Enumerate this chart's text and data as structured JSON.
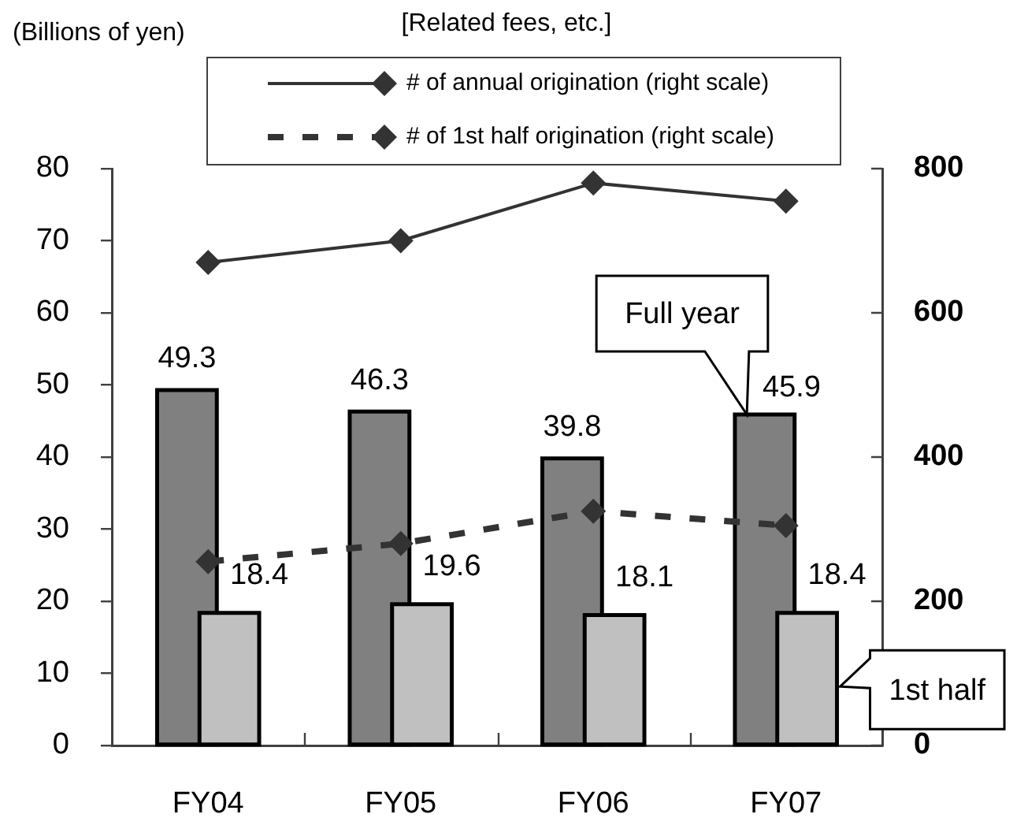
{
  "chart_data": {
    "type": "bar",
    "title": "[Related fees, etc.]",
    "ylabel": "(Billions of yen)",
    "categories": [
      "FY04",
      "FY05",
      "FY06",
      "FY07"
    ],
    "series": [
      {
        "name": "Full year",
        "color": "#808080",
        "values": [
          49.3,
          46.3,
          39.8,
          45.9
        ],
        "value_labels": [
          "49.3",
          "46.3",
          "39.8",
          "45.9"
        ]
      },
      {
        "name": "1st half",
        "color": "#c0c0c0",
        "values": [
          18.4,
          19.6,
          18.1,
          18.4
        ],
        "value_labels": [
          "18.4",
          "19.6",
          "18.1",
          "18.4"
        ]
      },
      {
        "name": "# of annual origination (right scale)",
        "type": "line",
        "axis": "y2",
        "color": "#333333",
        "values": [
          670,
          700,
          780,
          755
        ],
        "line_style": "solid"
      },
      {
        "name": "# of 1st half origination (right scale)",
        "type": "line",
        "axis": "y2",
        "color": "#333333",
        "values": [
          255,
          280,
          325,
          305
        ],
        "line_style": "dashed"
      }
    ],
    "ylim": [
      0,
      80
    ],
    "yticks": [
      0,
      10,
      20,
      30,
      40,
      50,
      60,
      70,
      80
    ],
    "y2lim": [
      0,
      800
    ],
    "y2ticks": [
      0,
      200,
      400,
      600,
      800
    ],
    "legend": "top",
    "marker": "diamond"
  }
}
